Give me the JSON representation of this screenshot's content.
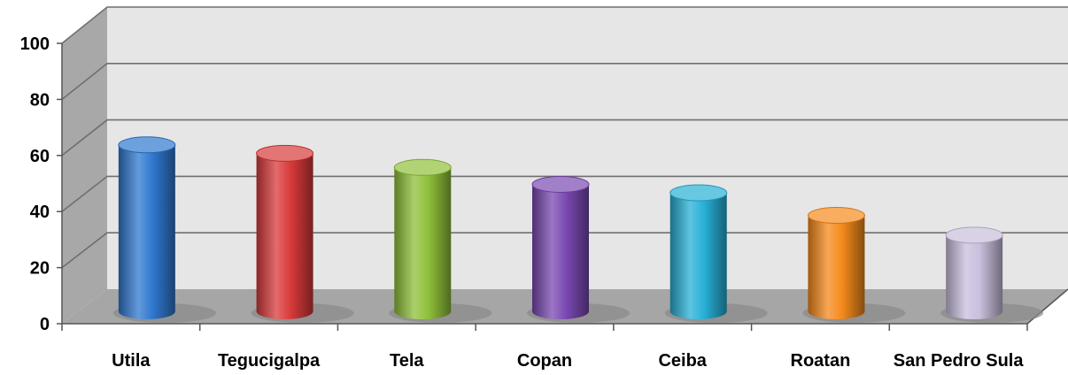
{
  "chart_data": {
    "type": "bar",
    "style": "3d-cylinder",
    "categories": [
      "Utila",
      "Tegucigalpa",
      "Tela",
      "Copan",
      "Ceiba",
      "Roatan",
      "San Pedro Sula"
    ],
    "values": [
      59,
      56,
      51,
      45,
      42,
      34,
      27
    ],
    "colors": [
      "#2f78cf",
      "#d93a3a",
      "#8fc03a",
      "#7a48b2",
      "#27b0d6",
      "#f58a1c",
      "#c9bedd"
    ],
    "ylim": [
      0,
      100
    ],
    "yticks": [
      0,
      20,
      40,
      60,
      80,
      100
    ],
    "grid": true,
    "title": "",
    "xlabel": "",
    "ylabel": ""
  }
}
